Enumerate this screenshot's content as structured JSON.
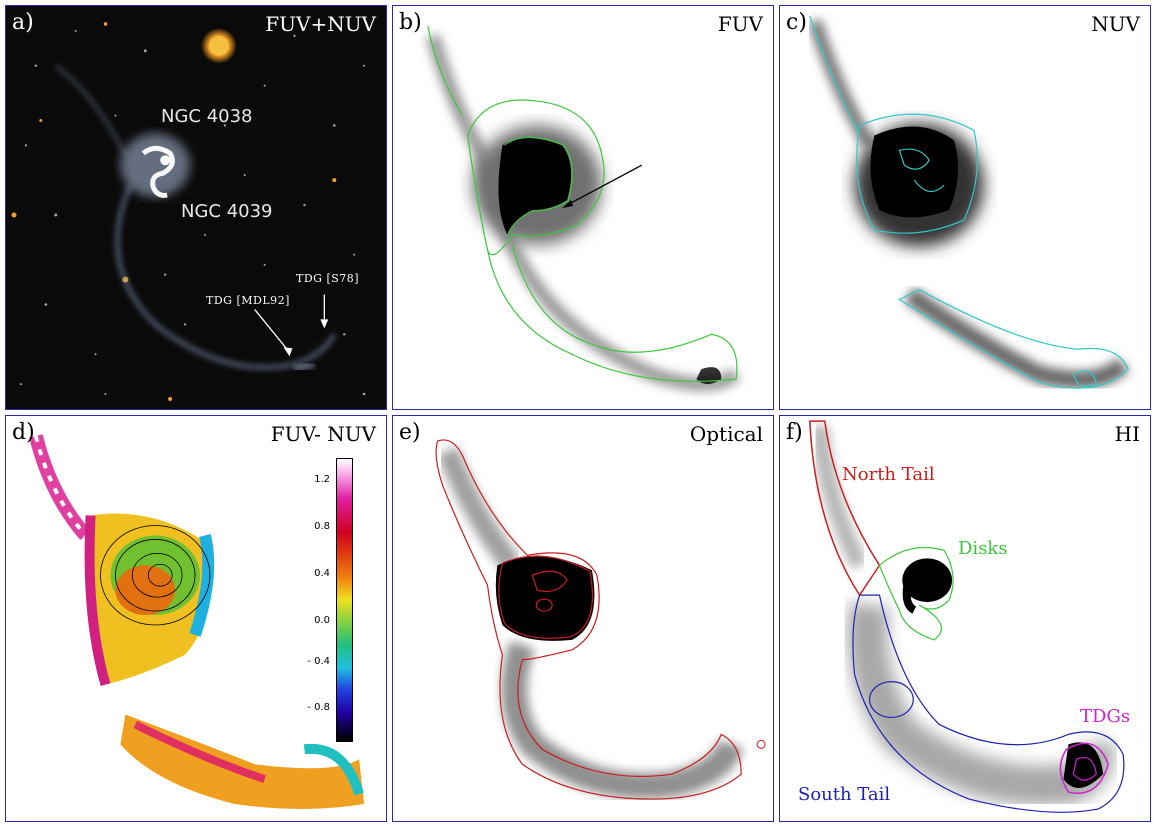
{
  "panels": {
    "a": {
      "label": "a)",
      "title": "FUV+NUV",
      "galaxy1": "NGC 4038",
      "galaxy2": "NGC 4039",
      "tdg1": "TDG [S78]",
      "tdg2": "TDG [MDL92]"
    },
    "b": {
      "label": "b)",
      "title": "FUV"
    },
    "c": {
      "label": "c)",
      "title": "NUV"
    },
    "d": {
      "label": "d)",
      "title": "FUV- NUV",
      "colorbar_ticks": [
        "1.2",
        "0.8",
        "0.4",
        "0.0",
        "- 0.4",
        "- 0.8"
      ]
    },
    "e": {
      "label": "e)",
      "title": "Optical"
    },
    "f": {
      "label": "f)",
      "title": "HI",
      "regions": {
        "north": "North Tail",
        "disks": "Disks",
        "tdgs": "TDGs",
        "south": "South Tail"
      }
    }
  },
  "colors": {
    "frame": "#2a2aa8",
    "fuv_contour": "#3cc83c",
    "nuv_contour": "#30c8c8",
    "optical_contour": "#c81e1e",
    "north_tail": "#c81e1e",
    "disks": "#3cc83c",
    "tdgs": "#d020d0",
    "south_tail": "#2020b0"
  }
}
